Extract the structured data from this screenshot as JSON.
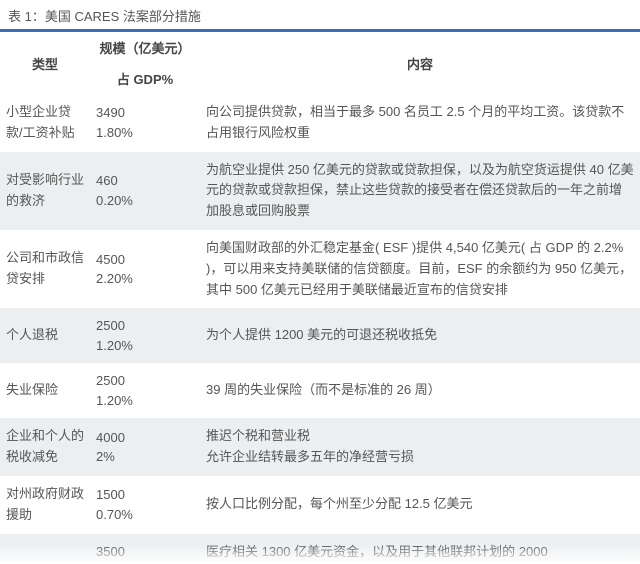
{
  "title": "表 1：美国 CARES 法案部分措施",
  "header": {
    "type": "类型",
    "scale_top": "规模（亿美元）",
    "scale_bottom": "占 GDP%",
    "desc": "内容"
  },
  "rows": [
    {
      "type": "小型企业贷款/工资补贴",
      "amount": "3490",
      "pct": "1.80%",
      "desc": "向公司提供贷款，相当于最多 500 名员工 2.5 个月的平均工资。该贷款不占用银行风险权重"
    },
    {
      "type": "对受影响行业的救济",
      "amount": "460",
      "pct": "0.20%",
      "desc": "为航空业提供 250 亿美元的贷款或贷款担保，以及为航空货运提供 40 亿美元的贷款或贷款担保，禁止这些贷款的接受者在偿还贷款后的一年之前增加股息或回购股票"
    },
    {
      "type": "公司和市政信贷安排",
      "amount": "4500",
      "pct": "2.20%",
      "desc": "向美国财政部的外汇稳定基金( ESF )提供 4,540 亿美元( 占 GDP 的 2.2% )，可以用来支持美联储的信贷额度。目前，ESF 的余额约为 950 亿美元，其中 500 亿美元已经用于美联储最近宣布的信贷安排"
    },
    {
      "type": "个人退税",
      "amount": "2500",
      "pct": "1.20%",
      "desc": "为个人提供 1200 美元的可退还税收抵免"
    },
    {
      "type": "失业保险",
      "amount": "2500",
      "pct": "1.20%",
      "desc": "39 周的失业保险（而不是标准的 26 周）"
    },
    {
      "type": "企业和个人的税收减免",
      "amount": "4000",
      "pct": "2%",
      "desc": "推迟个税和营业税\n允许企业结转最多五年的净经营亏损"
    },
    {
      "type": "对州政府财政援助",
      "amount": "1500",
      "pct": "0.70%",
      "desc": "按人口比例分配，每个州至少分配 12.5 亿美元"
    },
    {
      "type": "",
      "amount": "3500",
      "pct": "",
      "desc": "医疗相关 1300 亿美元资金，以及用于其他联邦计划的 2000"
    }
  ]
}
